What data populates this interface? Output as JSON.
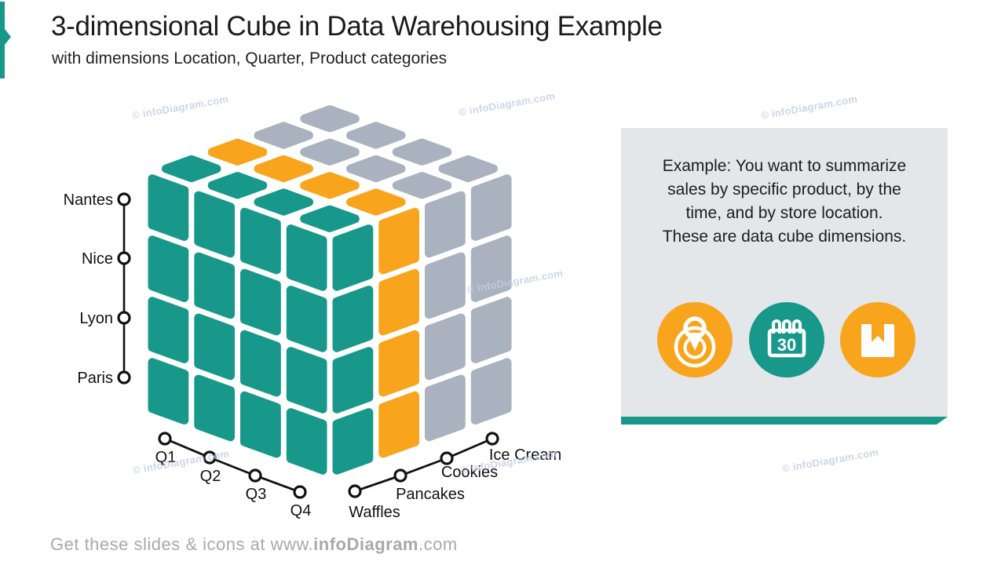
{
  "slide": {
    "title": "3-dimensional Cube in Data Warehousing Example",
    "subtitle": "with dimensions Location, Quarter, Product categories",
    "watermark": "© infoDiagram.com",
    "footer": {
      "prefix": "Get these slides & icons at www.",
      "brand": "infoDiagram",
      "suffix": ".com"
    }
  },
  "colors": {
    "teal": "#18988B",
    "orange": "#F8A51D",
    "gray": "#A9B2BE",
    "panel_bg": "#E4E7EA",
    "watermark": "#C4CFE2",
    "footer_text": "#A6A9AD",
    "axis": "#111111",
    "title_text": "#1B1B1B"
  },
  "cube": {
    "rows": 4,
    "cols": 4,
    "slice_colors": [
      "teal",
      "orange",
      "gray",
      "gray"
    ]
  },
  "axes": {
    "location": {
      "labels": [
        "Nantes",
        "Nice",
        "Lyon",
        "Paris"
      ]
    },
    "quarter": {
      "labels": [
        "Q1",
        "Q2",
        "Q3",
        "Q4"
      ]
    },
    "product": {
      "labels": [
        "Waffles",
        "Pancakes",
        "Cookies",
        "Ice Cream"
      ]
    }
  },
  "panel": {
    "text": "Example: You want to summarize\nsales by specific product, by the\ntime, and by store location.\nThese are data cube dimensions.",
    "icons": [
      {
        "name": "location-pin"
      },
      {
        "name": "calendar",
        "day": "30"
      },
      {
        "name": "product-box"
      }
    ]
  }
}
